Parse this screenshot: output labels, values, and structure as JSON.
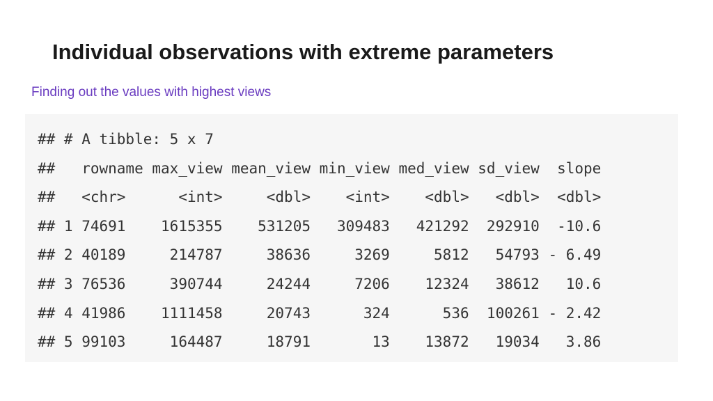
{
  "slide": {
    "title": "Individual observations with extreme parameters",
    "subtitle": "Finding out the values with highest views"
  },
  "output": {
    "header": "## # A tibble: 5 x 7",
    "columns": [
      "rowname",
      "max_view",
      "mean_view",
      "min_view",
      "med_view",
      "sd_view",
      "slope"
    ],
    "types": [
      "<chr>",
      "<int>",
      "<dbl>",
      "<int>",
      "<dbl>",
      "<dbl>",
      "<dbl>"
    ],
    "rows": [
      [
        "74691",
        "1615355",
        "531205",
        "309483",
        "421292",
        "292910",
        "-10.6"
      ],
      [
        "40189",
        "214787",
        "38636",
        "3269",
        "5812",
        "54793",
        "- 6.49"
      ],
      [
        "76536",
        "390744",
        "24244",
        "7206",
        "12324",
        "38612",
        "10.6"
      ],
      [
        "41986",
        "1111458",
        "20743",
        "324",
        "536",
        "100261",
        "- 2.42"
      ],
      [
        "99103",
        "164487",
        "18791",
        "13",
        "13872",
        "19034",
        "3.86"
      ]
    ]
  }
}
